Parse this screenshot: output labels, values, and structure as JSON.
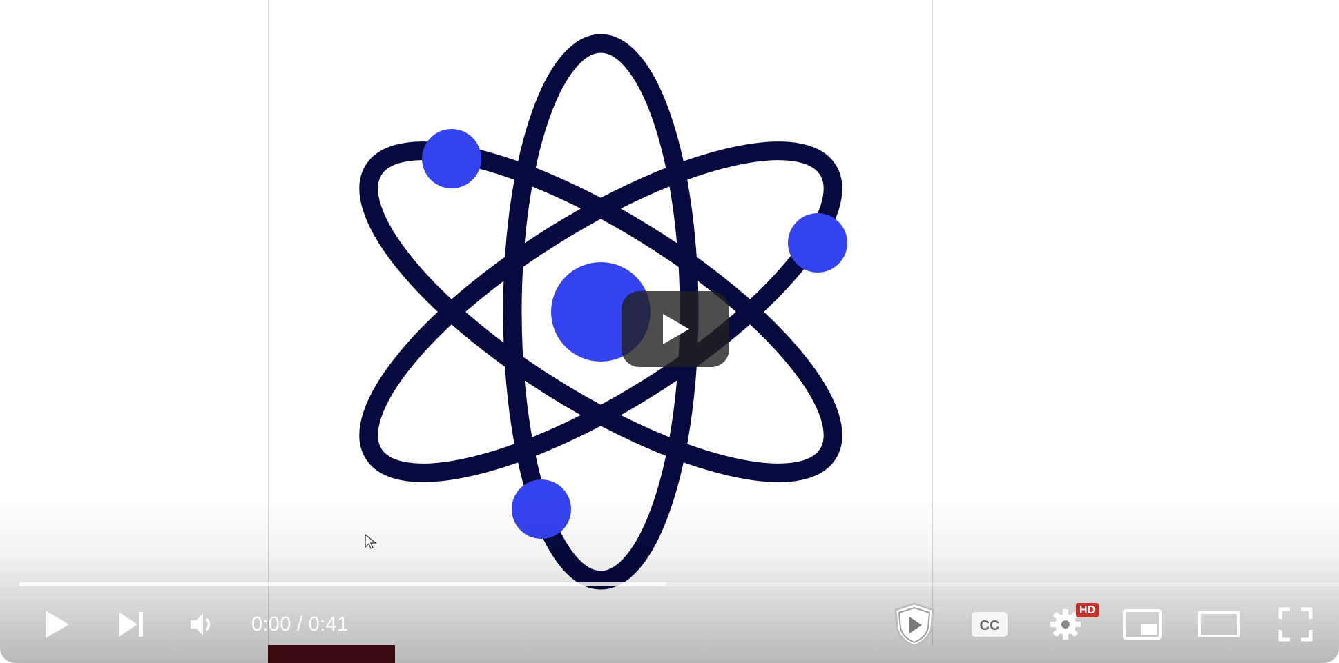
{
  "player": {
    "time_current": "0:00",
    "time_separator": " / ",
    "time_total": "0:41",
    "hd_badge": "HD",
    "loaded_fraction": 0.49,
    "played_fraction": 0.0
  },
  "controls": {
    "play": "play-icon",
    "next": "skip-next-icon",
    "volume": "volume-icon",
    "shield": "shield-play-icon",
    "captions": "captions-icon",
    "settings": "gear-icon",
    "miniplayer": "miniplayer-icon",
    "theater": "theater-mode-icon",
    "fullscreen": "fullscreen-icon"
  },
  "colors": {
    "atom_orbit": "#060a3e",
    "atom_electron": "#3443f0",
    "hd_badge": "#c4302b",
    "overlay": "#212121"
  }
}
